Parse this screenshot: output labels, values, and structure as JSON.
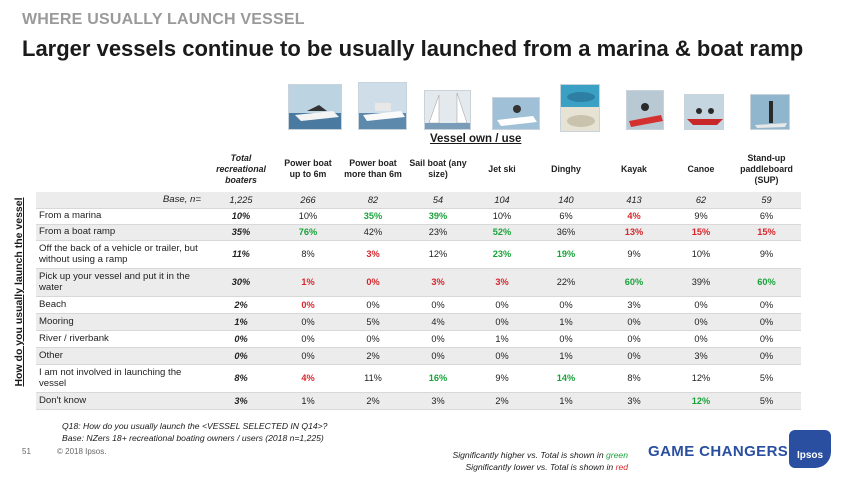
{
  "slide": {
    "kicker": "WHERE USUALLY LAUNCH VESSEL",
    "title": "Larger vessels continue to be usually launched from a marina & boat ramp"
  },
  "photos": [
    "power-boat-small-photo",
    "power-boat-large-photo",
    "sail-boat-photo",
    "jet-ski-photo",
    "dinghy-photo",
    "kayak-photo",
    "canoe-photo",
    "paddleboard-photo"
  ],
  "table": {
    "group_label": "Vessel own / use",
    "row_axis_label": "How do you usually launch the vessel",
    "headers": [
      "Total recreational boaters",
      "Power boat up to 6m",
      "Power boat more than 6m",
      "Sail boat (any size)",
      "Jet ski",
      "Dinghy",
      "Kayak",
      "Canoe",
      "Stand-up paddleboard (SUP)"
    ],
    "base": {
      "label": "Base, n=",
      "values": [
        "1,225",
        "266",
        "82",
        "54",
        "104",
        "140",
        "413",
        "62",
        "59"
      ]
    },
    "rows": [
      {
        "label": "From a marina",
        "values": [
          "10%",
          "10%",
          "35%",
          "39%",
          "10%",
          "6%",
          "4%",
          "9%",
          "6%"
        ],
        "sig": [
          "",
          "",
          "hi",
          "hi",
          "",
          "",
          "lo",
          "",
          ""
        ]
      },
      {
        "label": "From a boat ramp",
        "values": [
          "35%",
          "76%",
          "42%",
          "23%",
          "52%",
          "36%",
          "13%",
          "15%",
          "15%"
        ],
        "sig": [
          "",
          "hi",
          "",
          "",
          "hi",
          "",
          "lo",
          "lo",
          "lo"
        ]
      },
      {
        "label": "Off the back of a vehicle or trailer, but without using a ramp",
        "values": [
          "11%",
          "8%",
          "3%",
          "12%",
          "23%",
          "19%",
          "9%",
          "10%",
          "9%"
        ],
        "sig": [
          "",
          "",
          "lo",
          "",
          "hi",
          "hi",
          "",
          "",
          ""
        ]
      },
      {
        "label": "Pick up your vessel and put it in the water",
        "values": [
          "30%",
          "1%",
          "0%",
          "3%",
          "3%",
          "22%",
          "60%",
          "39%",
          "60%"
        ],
        "sig": [
          "",
          "lo",
          "lo",
          "lo",
          "lo",
          "",
          "hi",
          "",
          "hi"
        ]
      },
      {
        "label": "Beach",
        "values": [
          "2%",
          "0%",
          "0%",
          "0%",
          "0%",
          "0%",
          "3%",
          "0%",
          "0%"
        ],
        "sig": [
          "",
          "lo",
          "",
          "",
          "",
          "",
          "",
          "",
          ""
        ]
      },
      {
        "label": "Mooring",
        "values": [
          "1%",
          "0%",
          "5%",
          "4%",
          "0%",
          "1%",
          "0%",
          "0%",
          "0%"
        ],
        "sig": [
          "",
          "",
          "",
          "",
          "",
          "",
          "",
          "",
          ""
        ]
      },
      {
        "label": "River / riverbank",
        "values": [
          "0%",
          "0%",
          "0%",
          "0%",
          "1%",
          "0%",
          "0%",
          "0%",
          "0%"
        ],
        "sig": [
          "",
          "",
          "",
          "",
          "",
          "",
          "",
          "",
          ""
        ]
      },
      {
        "label": "Other",
        "values": [
          "0%",
          "0%",
          "2%",
          "0%",
          "0%",
          "1%",
          "0%",
          "3%",
          "0%"
        ],
        "sig": [
          "",
          "",
          "",
          "",
          "",
          "",
          "",
          "",
          ""
        ]
      },
      {
        "label": "I am not involved in launching the vessel",
        "values": [
          "8%",
          "4%",
          "11%",
          "16%",
          "9%",
          "14%",
          "8%",
          "12%",
          "5%"
        ],
        "sig": [
          "",
          "lo",
          "",
          "hi",
          "",
          "hi",
          "",
          "",
          ""
        ]
      },
      {
        "label": "Don't know",
        "values": [
          "3%",
          "1%",
          "2%",
          "3%",
          "2%",
          "1%",
          "3%",
          "12%",
          "5%"
        ],
        "sig": [
          "",
          "",
          "",
          "",
          "",
          "",
          "",
          "hi",
          ""
        ]
      }
    ]
  },
  "footnote": {
    "question": "Q18: How do you usually launch the <VESSEL SELECTED IN Q14>?",
    "base": "Base: NZers 18+ recreational boating owners / users (2018 n=1,225)"
  },
  "footer": {
    "page_number": "51",
    "copyright": "© 2018 Ipsos.",
    "sig_higher_prefix": "Significantly higher vs. Total is shown in ",
    "sig_higher_word": "green",
    "sig_lower_prefix": "Significantly lower vs. Total is shown in ",
    "sig_lower_word": "red",
    "brand": "GAME CHANGERS",
    "logo_text": "Ipsos"
  },
  "colors": {
    "higher": "#1aa33a",
    "lower": "#d6262b",
    "brand": "#2a4fa0",
    "band": "#ececec"
  }
}
